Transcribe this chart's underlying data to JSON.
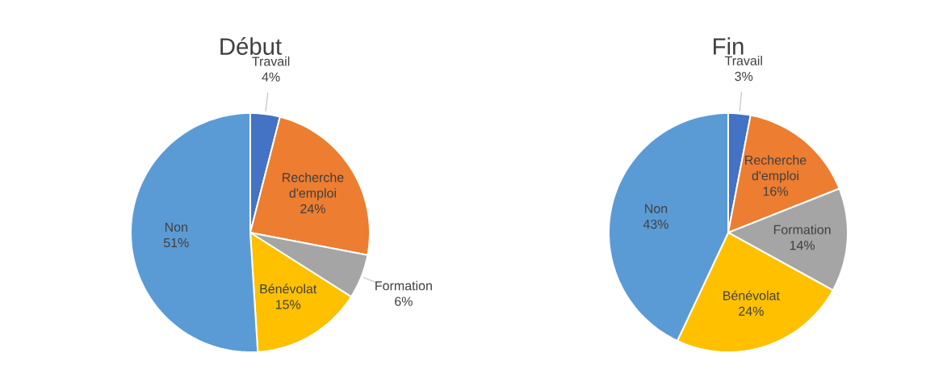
{
  "chart_data": [
    {
      "type": "pie",
      "title": "Début",
      "categories": [
        "Travail",
        "Recherche d'emploi",
        "Formation",
        "Bénévolat",
        "Non"
      ],
      "values": [
        4,
        24,
        6,
        15,
        51
      ],
      "colors": [
        "#4472c4",
        "#ed7d31",
        "#a5a5a5",
        "#ffc000",
        "#5b9bd5"
      ],
      "value_labels": [
        "4%",
        "24%",
        "6%",
        "15%",
        "51%"
      ]
    },
    {
      "type": "pie",
      "title": "Fin",
      "categories": [
        "Travail",
        "Recherche d'emploi",
        "Formation",
        "Bénévolat",
        "Non"
      ],
      "values": [
        3,
        16,
        14,
        24,
        43
      ],
      "colors": [
        "#4472c4",
        "#ed7d31",
        "#a5a5a5",
        "#ffc000",
        "#5b9bd5"
      ],
      "value_labels": [
        "3%",
        "16%",
        "14%",
        "24%",
        "43%"
      ]
    }
  ]
}
